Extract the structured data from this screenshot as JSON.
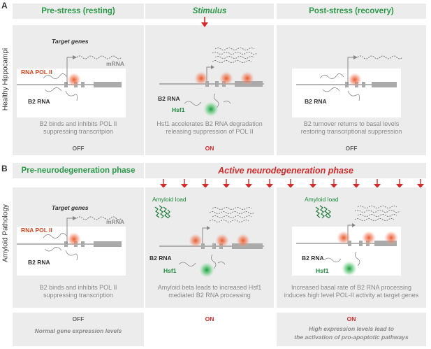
{
  "sections": {
    "a": {
      "letter": "A",
      "side_label": "Healthy Hippocampi"
    },
    "b": {
      "letter": "B",
      "side_label": "Amyloid Pathology"
    }
  },
  "panel_a": {
    "col1": {
      "header": "Pre-stress (resting)",
      "target_genes": "Target genes",
      "mrna": "mRNA",
      "rna_pol": "RNA POL II",
      "b2rna": "B2 RNA",
      "caption": [
        "B2 binds and inhibits  POL II",
        "suppressing transcritpion"
      ],
      "state": "OFF"
    },
    "col2": {
      "header": "Stimulus",
      "b2rna": "B2 RNA",
      "hsf1": "Hsf1",
      "caption": [
        "Hsf1 accelerates B2 RNA degradation",
        "releasing suppression of POL II"
      ],
      "state": "ON"
    },
    "col3": {
      "header": "Post-stress (recovery)",
      "b2rna": "B2 RNA",
      "caption": [
        "B2 turnover returns to basal levels",
        "restoring transcriptional suppression"
      ],
      "state": "OFF"
    }
  },
  "panel_b": {
    "col1": {
      "header": "Pre-neurodegeneration phase",
      "target_genes": "Target genes",
      "mrna": "mRNA",
      "rna_pol": "RNA POL II",
      "b2rna": "B2 RNA",
      "caption": [
        "B2 binds and inhibits  POL II",
        "suppressing transcription"
      ],
      "state": "OFF",
      "bottom_note": "Normal gene expression levels"
    },
    "active_header": "Active neurodegeneration phase",
    "col2": {
      "amyloid": "Amyloid load",
      "b2rna": "B2 RNA",
      "hsf1": "Hsf1",
      "caption": [
        "Amyloid beta leads to increased Hsf1",
        "mediated B2 RNA processing"
      ],
      "state": "ON"
    },
    "col3": {
      "amyloid": "Amyloid load",
      "b2rna": "B2 RNA",
      "hsf1": "Hsf1",
      "caption": [
        "Increased basal rate of B2 RNA processing",
        "induces high level POL-II activity at target genes"
      ],
      "state": "ON",
      "bottom_note": [
        "High expression levels lead to",
        "the activation of pro-apoptotic pathways"
      ]
    }
  },
  "colors": {
    "header_green": "#2a9a48",
    "accent_red": "#d42a2a",
    "pol_orange": "#e8501e",
    "hsf1_green": "#2fb04f",
    "panel_grey": "#ececec"
  }
}
